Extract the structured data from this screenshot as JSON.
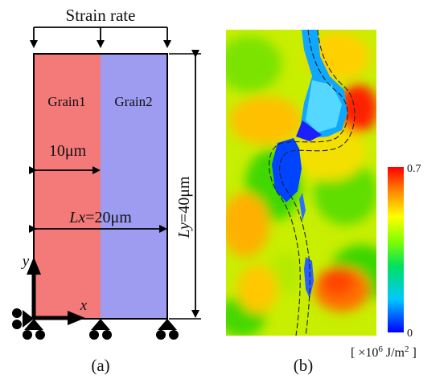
{
  "panel_a": {
    "top_label": "Strain rate",
    "grain1_label": "Grain1",
    "grain2_label": "Grain2",
    "width_half_label": "10μm",
    "lx_var": "Lx",
    "lx_value": "=20μm",
    "ly_var": "Ly",
    "ly_value": "=40μm",
    "axis_y": "y",
    "axis_x": "x",
    "caption": "(a)",
    "colors": {
      "grain1": "#f47a7a",
      "grain2": "#9d9cf1"
    }
  },
  "panel_b": {
    "caption": "(b)",
    "colorbar": {
      "max_label": "0.7",
      "min_label": "0",
      "unit_prefix": "[ ×10",
      "unit_exp": "6",
      "unit_suffix": " J/m",
      "unit_sup": "2",
      "unit_end": " ]"
    }
  }
}
